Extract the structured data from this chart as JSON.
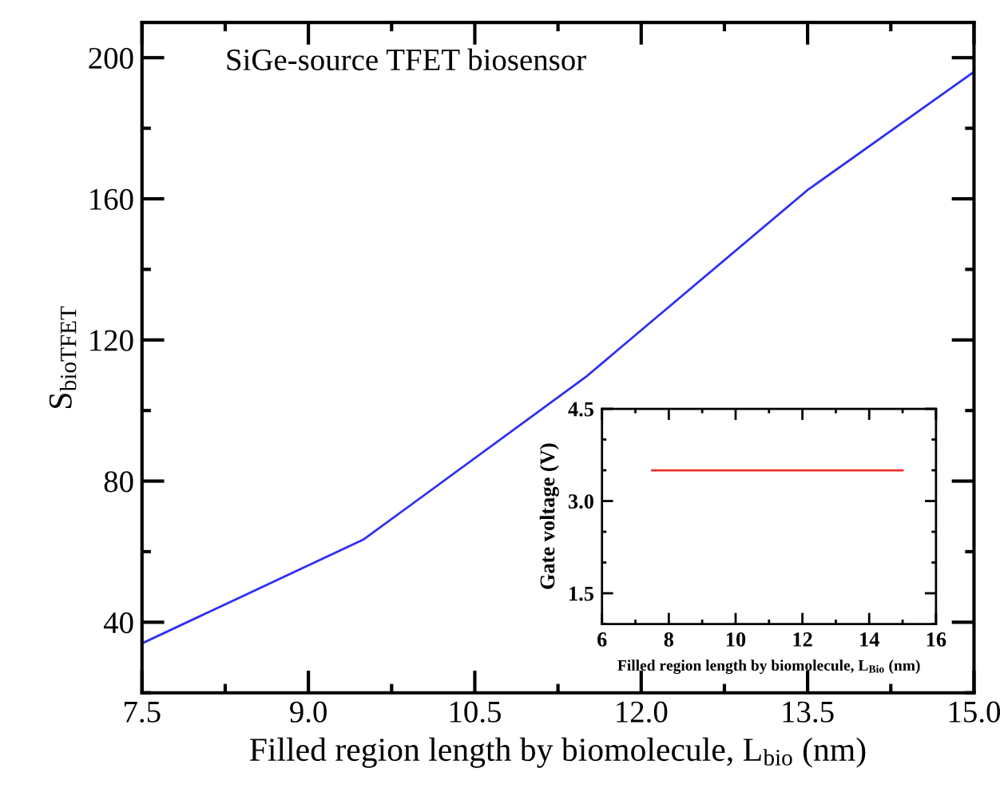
{
  "chart_data": [
    {
      "type": "line",
      "xlabel": "Filled region length by biomolecule, L$_{bio}$ (nm)",
      "ylabel": "S$_{bioTFET}$",
      "annotations": [
        "SiGe-source TFET biosensor"
      ],
      "x": [
        7.5,
        9.5,
        11.5,
        13.5,
        15
      ],
      "series": [
        {
          "color": "#2f2ff5",
          "values": [
            34,
            63.5,
            109.5,
            162.5,
            196
          ]
        }
      ],
      "xlim": [
        7.5,
        15
      ],
      "ylim": [
        20,
        210
      ],
      "xticks": [
        7.5,
        {
          "value": 9,
          "label": "9.0"
        },
        10.5,
        {
          "value": 12,
          "label": "12.0"
        },
        13.5,
        {
          "value": 15,
          "label": "15.0"
        }
      ],
      "yticks": [
        40,
        80,
        120,
        160,
        200
      ],
      "grid": false,
      "legend": false,
      "marker": "none",
      "line_style": "solid"
    },
    {
      "type": "line",
      "xlabel": "Filled region length by biomolecule, L$_{Bio}$ (nm)",
      "ylabel": "Gate voltage (V)",
      "x": [
        7.5,
        15
      ],
      "series": [
        {
          "color": "#f03030",
          "values": [
            3.5,
            3.5
          ]
        }
      ],
      "xlim": [
        6,
        16
      ],
      "ylim": [
        1.0,
        4.5
      ],
      "xticks": [
        6,
        8,
        10,
        12,
        14,
        16
      ],
      "yticks": [
        1.5,
        {
          "value": 3,
          "label": "3.0"
        },
        4.5
      ],
      "grid": false,
      "legend": false,
      "marker": "none",
      "line_style": "solid"
    }
  ]
}
